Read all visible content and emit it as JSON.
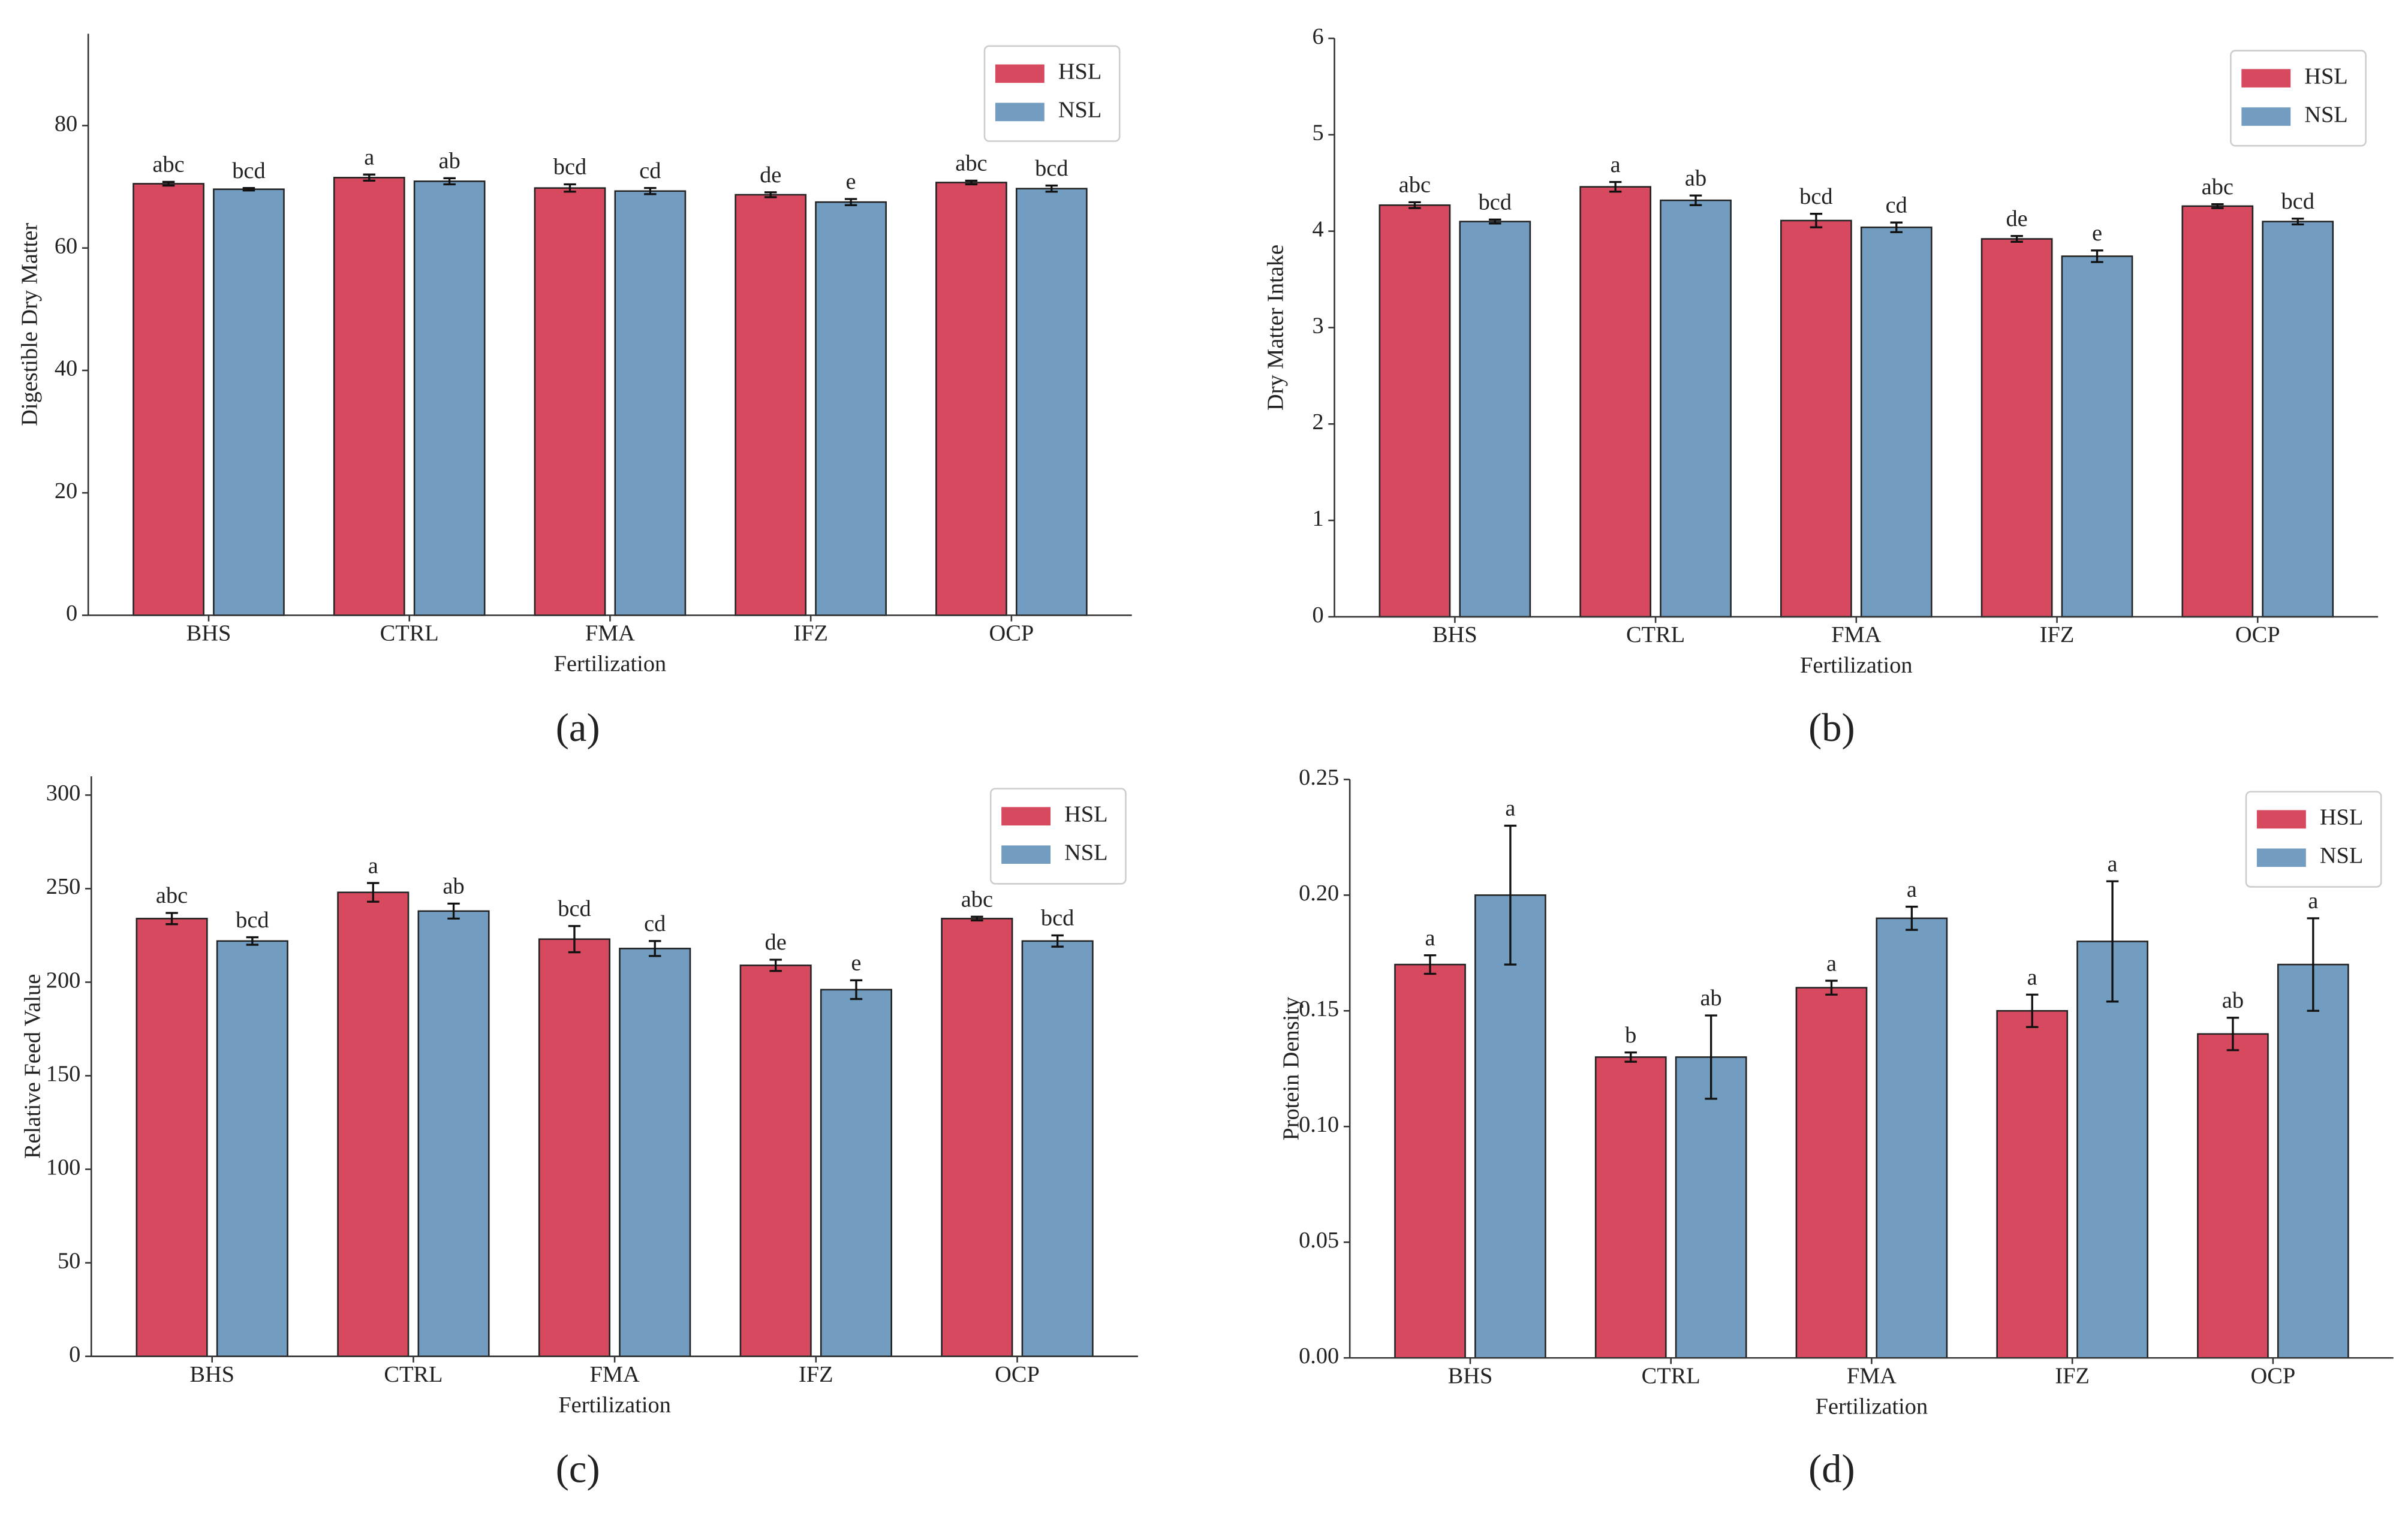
{
  "chart_data": [
    {
      "type": "bar",
      "panel_label": "(a)",
      "xlabel": "Fertilization",
      "ylabel": "Digestible Dry Matter",
      "categories": [
        "BHS",
        "CTRL",
        "FMA",
        "IFZ",
        "OCP"
      ],
      "series": [
        {
          "name": "HSL",
          "color": "#d7495e",
          "values": [
            70.5,
            71.5,
            69.8,
            68.7,
            70.7
          ],
          "errors": [
            0.3,
            0.5,
            0.6,
            0.4,
            0.3
          ],
          "letters": [
            "abc",
            "a",
            "bcd",
            "de",
            "abc"
          ]
        },
        {
          "name": "NSL",
          "color": "#729dc1",
          "values": [
            69.6,
            70.9,
            69.3,
            67.5,
            69.7
          ],
          "errors": [
            0.2,
            0.5,
            0.5,
            0.5,
            0.5
          ],
          "letters": [
            "bcd",
            "ab",
            "cd",
            "e",
            "bcd"
          ]
        }
      ],
      "ylim": [
        0,
        95
      ],
      "yticks": [
        0,
        20,
        40,
        60,
        80
      ],
      "legend": "upper right"
    },
    {
      "type": "bar",
      "panel_label": "(b)",
      "xlabel": "Fertilization",
      "ylabel": "Dry Matter Intake",
      "categories": [
        "BHS",
        "CTRL",
        "FMA",
        "IFZ",
        "OCP"
      ],
      "series": [
        {
          "name": "HSL",
          "color": "#d7495e",
          "values": [
            4.27,
            4.46,
            4.11,
            3.92,
            4.26
          ],
          "errors": [
            0.03,
            0.05,
            0.07,
            0.03,
            0.02
          ],
          "letters": [
            "abc",
            "a",
            "bcd",
            "de",
            "abc"
          ]
        },
        {
          "name": "NSL",
          "color": "#729dc1",
          "values": [
            4.1,
            4.32,
            4.04,
            3.74,
            4.1
          ],
          "errors": [
            0.02,
            0.05,
            0.05,
            0.06,
            0.03
          ],
          "letters": [
            "bcd",
            "ab",
            "cd",
            "e",
            "bcd"
          ]
        }
      ],
      "ylim": [
        0,
        6
      ],
      "yticks": [
        0,
        1,
        2,
        3,
        4,
        5,
        6
      ],
      "legend": "upper right"
    },
    {
      "type": "bar",
      "panel_label": "(c)",
      "xlabel": "Fertilization",
      "ylabel": "Relative Feed Value",
      "categories": [
        "BHS",
        "CTRL",
        "FMA",
        "IFZ",
        "OCP"
      ],
      "series": [
        {
          "name": "HSL",
          "color": "#d7495e",
          "values": [
            234,
            248,
            223,
            209,
            234
          ],
          "errors": [
            3,
            5,
            7,
            3,
            1
          ],
          "letters": [
            "abc",
            "a",
            "bcd",
            "de",
            "abc"
          ]
        },
        {
          "name": "NSL",
          "color": "#729dc1",
          "values": [
            222,
            238,
            218,
            196,
            222
          ],
          "errors": [
            2,
            4,
            4,
            5,
            3
          ],
          "letters": [
            "bcd",
            "ab",
            "cd",
            "e",
            "bcd"
          ]
        }
      ],
      "ylim": [
        0,
        310
      ],
      "yticks": [
        0,
        50,
        100,
        150,
        200,
        250,
        300
      ],
      "legend": "upper right"
    },
    {
      "type": "bar",
      "panel_label": "(d)",
      "xlabel": "Fertilization",
      "ylabel": "Protein Density",
      "categories": [
        "BHS",
        "CTRL",
        "FMA",
        "IFZ",
        "OCP"
      ],
      "series": [
        {
          "name": "HSL",
          "color": "#d7495e",
          "values": [
            0.17,
            0.13,
            0.16,
            0.15,
            0.14
          ],
          "errors": [
            0.004,
            0.002,
            0.003,
            0.007,
            0.007
          ],
          "letters": [
            "a",
            "b",
            "a",
            "a",
            "ab"
          ]
        },
        {
          "name": "NSL",
          "color": "#729dc1",
          "values": [
            0.2,
            0.13,
            0.19,
            0.18,
            0.17
          ],
          "errors": [
            0.03,
            0.018,
            0.005,
            0.026,
            0.02
          ],
          "letters": [
            "a",
            "ab",
            "a",
            "a",
            "a"
          ]
        }
      ],
      "ylim": [
        0,
        0.25
      ],
      "yticks": [
        {
          "value": 0,
          "label": "0.00"
        },
        {
          "value": 0.05,
          "label": "0.05"
        },
        {
          "value": 0.1,
          "label": "0.10"
        },
        {
          "value": 0.15,
          "label": "0.15"
        },
        {
          "value": 0.2,
          "label": "0.20"
        },
        {
          "value": 0.25,
          "label": "0.25"
        }
      ],
      "legend": "upper right"
    }
  ]
}
